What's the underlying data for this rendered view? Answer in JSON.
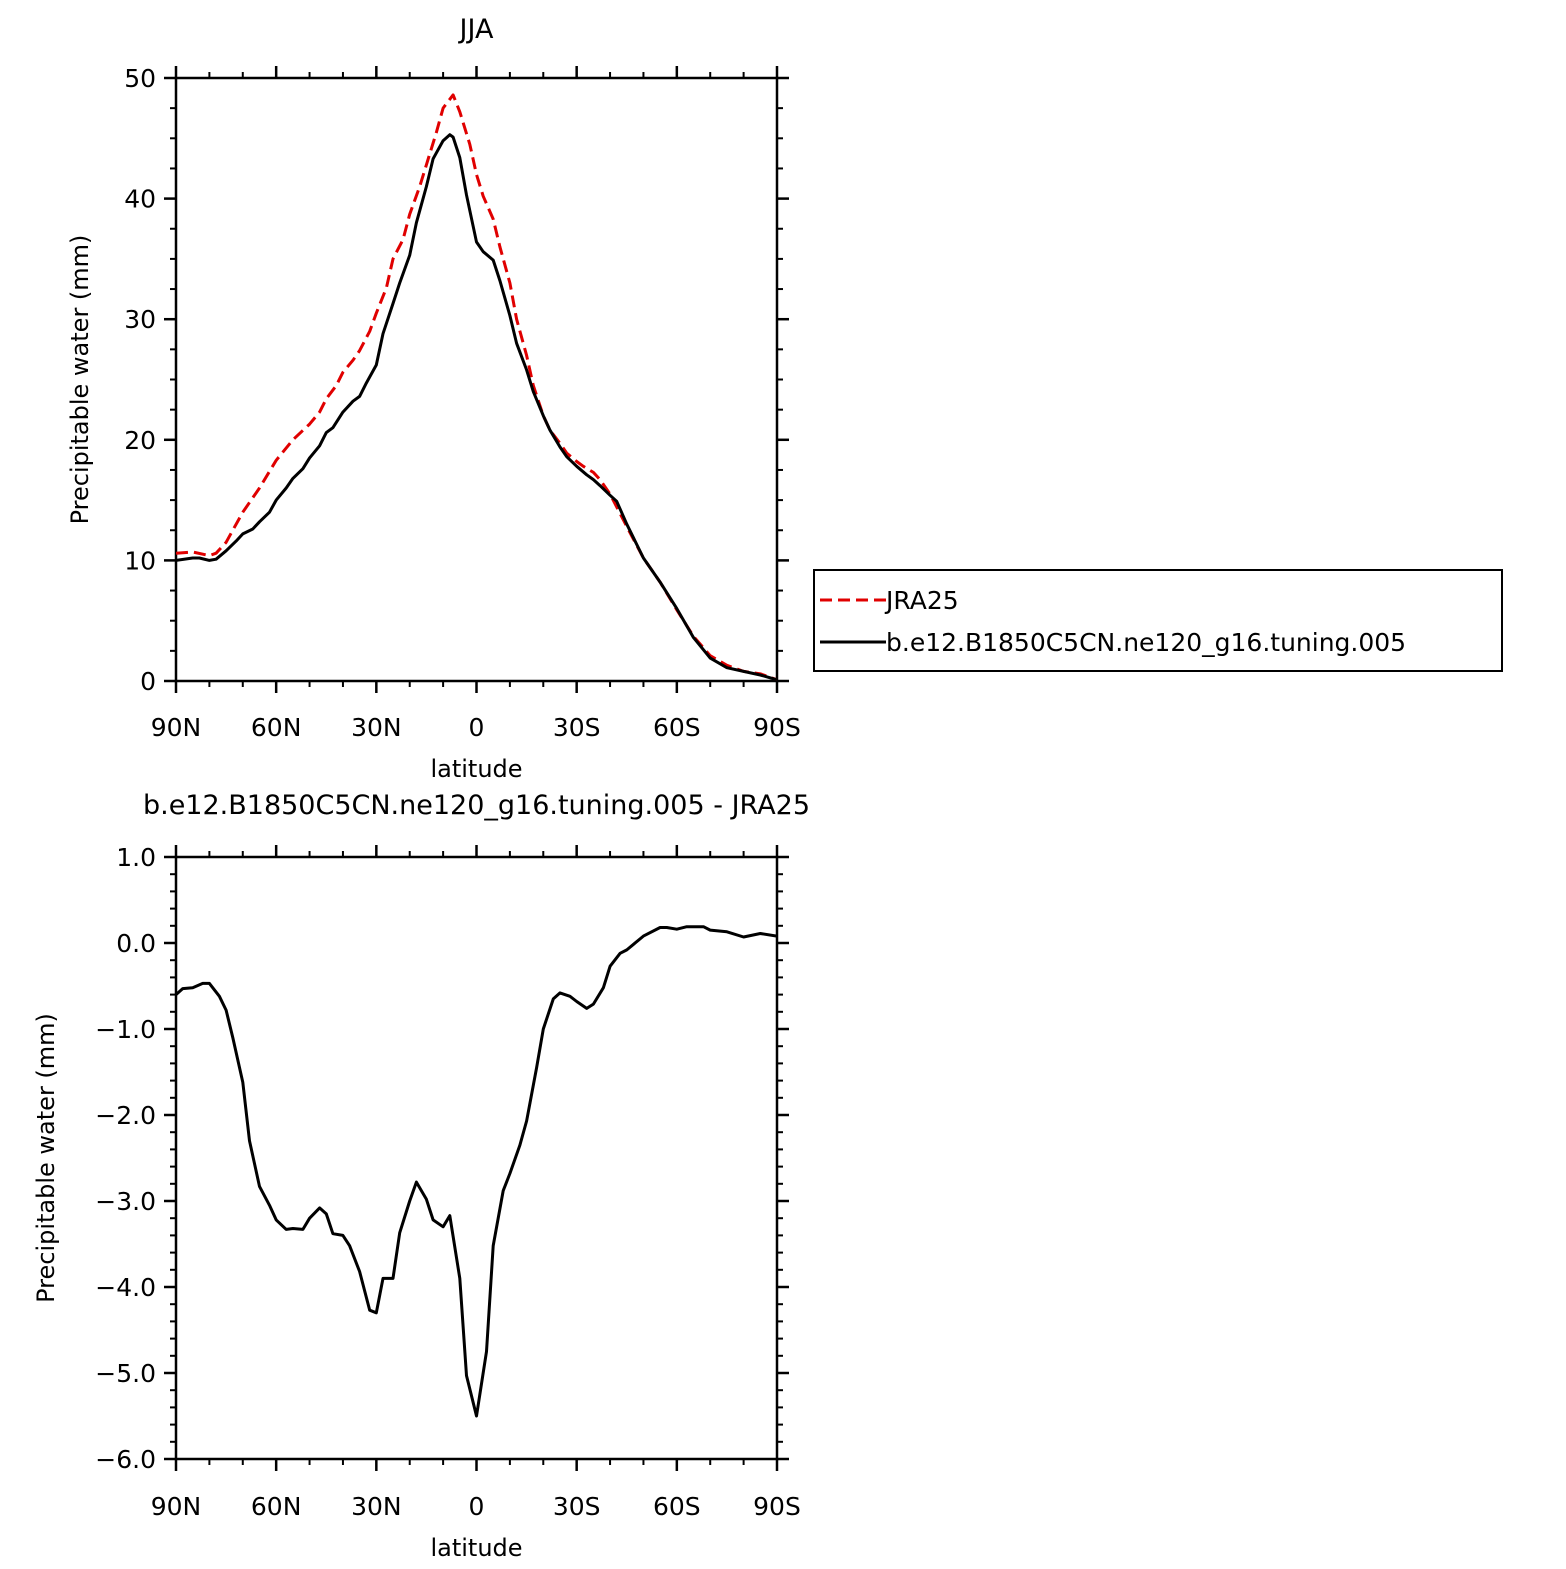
{
  "chart_data": [
    {
      "type": "line",
      "title": "JJA",
      "xlabel": "latitude",
      "ylabel": "Precipitable water (mm)",
      "xlim": [
        90,
        -90
      ],
      "ylim": [
        0,
        50
      ],
      "x_ticks": [
        90,
        60,
        30,
        0,
        -30,
        -60,
        -90
      ],
      "x_tick_labels": [
        "90N",
        "60N",
        "30N",
        "0",
        "30S",
        "60S",
        "90S"
      ],
      "y_ticks": [
        0,
        10,
        20,
        30,
        40,
        50
      ],
      "y_tick_labels": [
        "0",
        "10",
        "20",
        "30",
        "40",
        "50"
      ],
      "legend_position": "right",
      "series": [
        {
          "name": "JRA25",
          "color": "#e00000",
          "dash": "dashed",
          "x": [
            90,
            85,
            80,
            78,
            75,
            70,
            65,
            60,
            55,
            50,
            47,
            45,
            42,
            40,
            37,
            35,
            32,
            30,
            27,
            25,
            22,
            20,
            17,
            15,
            12,
            10,
            7,
            5,
            2,
            0,
            -2,
            -5,
            -7,
            -10,
            -12,
            -15,
            -17,
            -20,
            -22,
            -25,
            -27,
            -30,
            -32,
            -35,
            -37,
            -40,
            -45,
            -50,
            -55,
            -60,
            -65,
            -70,
            -75,
            -80,
            -85,
            -88,
            -90
          ],
          "y": [
            10.6,
            10.7,
            10.4,
            10.6,
            11.5,
            14,
            16,
            18.3,
            20,
            21.3,
            22.3,
            23.4,
            24.5,
            25.6,
            26.6,
            27.4,
            29,
            30.5,
            32.6,
            35,
            36.6,
            38.7,
            41,
            42.8,
            45.5,
            47.5,
            48.6,
            47.2,
            44.5,
            42,
            40.2,
            38.3,
            36,
            33,
            30,
            27,
            24.5,
            22,
            20.8,
            19.7,
            18.9,
            18.2,
            17.8,
            17.3,
            16.7,
            15.5,
            12.8,
            10.2,
            8.2,
            5.9,
            3.7,
            2.1,
            1.3,
            0.8,
            0.6,
            0.3,
            0.1
          ]
        },
        {
          "name": "b.e12.B1850C5CN.ne120_g16.tuning.005",
          "color": "#000000",
          "dash": "solid",
          "x": [
            90,
            85,
            83,
            80,
            78,
            75,
            72,
            70,
            67,
            65,
            62,
            60,
            57,
            55,
            52,
            50,
            47,
            45,
            43,
            40,
            37,
            35,
            33,
            30,
            28,
            25,
            23,
            20,
            18,
            15,
            13,
            10,
            8,
            7,
            5,
            3,
            0,
            -2,
            -5,
            -7,
            -10,
            -12,
            -15,
            -17,
            -20,
            -22,
            -25,
            -27,
            -30,
            -33,
            -35,
            -37,
            -40,
            -42,
            -45,
            -50,
            -55,
            -60,
            -65,
            -70,
            -75,
            -80,
            -85,
            -90
          ],
          "y": [
            10,
            10.2,
            10.2,
            10,
            10.1,
            10.8,
            11.6,
            12.2,
            12.6,
            13.2,
            14,
            15,
            16,
            16.8,
            17.6,
            18.5,
            19.5,
            20.6,
            21,
            22.3,
            23.2,
            23.6,
            24.7,
            26.2,
            28.8,
            31.3,
            33,
            35.3,
            38,
            41,
            43.3,
            44.8,
            45.3,
            45.1,
            43.4,
            40.3,
            36.4,
            35.6,
            34.9,
            33.2,
            30.3,
            28,
            25.8,
            24,
            22,
            20.8,
            19.4,
            18.6,
            17.8,
            17.1,
            16.7,
            16.2,
            15.4,
            14.9,
            13,
            10.2,
            8.2,
            6,
            3.6,
            1.9,
            1.1,
            0.8,
            0.5,
            0.1
          ]
        }
      ]
    },
    {
      "type": "line",
      "title": "b.e12.B1850C5CN.ne120_g16.tuning.005 - JRA25",
      "xlabel": "latitude",
      "ylabel": "Precipitable water (mm)",
      "xlim": [
        90,
        -90
      ],
      "ylim": [
        -6,
        1
      ],
      "x_ticks": [
        90,
        60,
        30,
        0,
        -30,
        -60,
        -90
      ],
      "x_tick_labels": [
        "90N",
        "60N",
        "30N",
        "0",
        "30S",
        "60S",
        "90S"
      ],
      "y_ticks": [
        1,
        0,
        -1,
        -2,
        -3,
        -4,
        -5,
        -6
      ],
      "y_tick_labels": [
        "1.0",
        "0.0",
        "−1.0",
        "−2.0",
        "−3.0",
        "−4.0",
        "−5.0",
        "−6.0"
      ],
      "series": [
        {
          "color": "#000000",
          "dash": "solid",
          "x": [
            90,
            88,
            85,
            82,
            80,
            77,
            75,
            73,
            70,
            68,
            65,
            62,
            60,
            57,
            55,
            52,
            50,
            47,
            45,
            43,
            40,
            38,
            35,
            32,
            30,
            28,
            25,
            23,
            20,
            18,
            15,
            13,
            10,
            8,
            5,
            3,
            0,
            -3,
            -5,
            -8,
            -10,
            -13,
            -15,
            -18,
            -20,
            -23,
            -25,
            -28,
            -30,
            -33,
            -35,
            -38,
            -40,
            -43,
            -45,
            -50,
            -55,
            -57,
            -60,
            -63,
            -65,
            -68,
            -70,
            -75,
            -80,
            -85,
            -90
          ],
          "y": [
            -0.6,
            -0.53,
            -0.52,
            -0.47,
            -0.47,
            -0.62,
            -0.78,
            -1.1,
            -1.62,
            -2.3,
            -2.83,
            -3.05,
            -3.22,
            -3.33,
            -3.32,
            -3.33,
            -3.2,
            -3.08,
            -3.15,
            -3.38,
            -3.4,
            -3.52,
            -3.82,
            -4.27,
            -4.3,
            -3.9,
            -3.9,
            -3.37,
            -3.0,
            -2.78,
            -2.98,
            -3.22,
            -3.3,
            -3.17,
            -3.9,
            -5.03,
            -5.5,
            -4.75,
            -3.52,
            -2.88,
            -2.68,
            -2.35,
            -2.07,
            -1.45,
            -1.0,
            -0.65,
            -0.58,
            -0.62,
            -0.68,
            -0.76,
            -0.71,
            -0.52,
            -0.27,
            -0.12,
            -0.08,
            0.08,
            0.18,
            0.18,
            0.16,
            0.19,
            0.19,
            0.19,
            0.15,
            0.13,
            0.07,
            0.11,
            0.08
          ]
        }
      ]
    }
  ]
}
